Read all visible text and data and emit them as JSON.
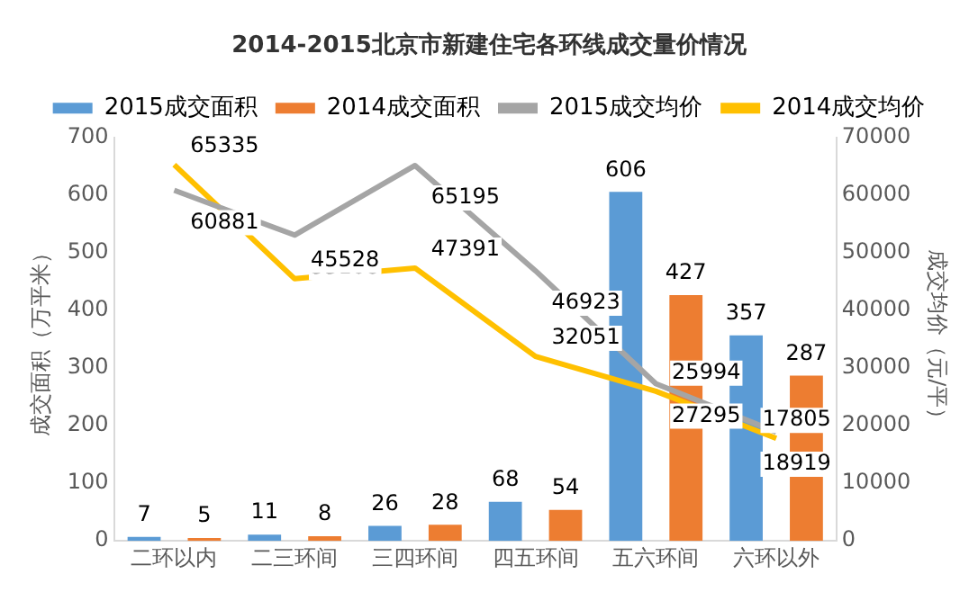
{
  "chart_data": {
    "type": "bar",
    "title": "2014-2015北京市新建住宅各环线成交量价情况",
    "categories": [
      "二环以内",
      "二三环间",
      "三四环间",
      "四五环间",
      "五六环间",
      "六环以外"
    ],
    "series": [
      {
        "name": "2015成交面积",
        "color": "#5b9bd5",
        "values": [
          7,
          11,
          26,
          68,
          606,
          357
        ]
      },
      {
        "name": "2014成交面积",
        "color": "#ed7d31",
        "values": [
          5,
          8,
          28,
          54,
          427,
          287
        ]
      },
      {
        "name": "2015成交均价",
        "type": "line",
        "axis": "y2",
        "color": "#a5a5a5",
        "values": [
          60881,
          53108,
          65195,
          46923,
          27295,
          18919
        ]
      },
      {
        "name": "2014成交均价",
        "type": "line",
        "axis": "y2",
        "color": "#ffc000",
        "values": [
          65335,
          45528,
          47391,
          32051,
          25994,
          17805
        ]
      }
    ],
    "ylabel": "成交面积（万平米）",
    "y2label": "成交均价（元/平）",
    "ylim": [
      0,
      700
    ],
    "yticks": [
      0,
      100,
      200,
      300,
      400,
      500,
      600,
      700
    ],
    "y2lim": [
      0,
      70000
    ],
    "y2ticks": [
      0,
      10000,
      20000,
      30000,
      40000,
      50000,
      60000,
      70000
    ],
    "legend": "top",
    "data_labels": true,
    "grid": false
  }
}
